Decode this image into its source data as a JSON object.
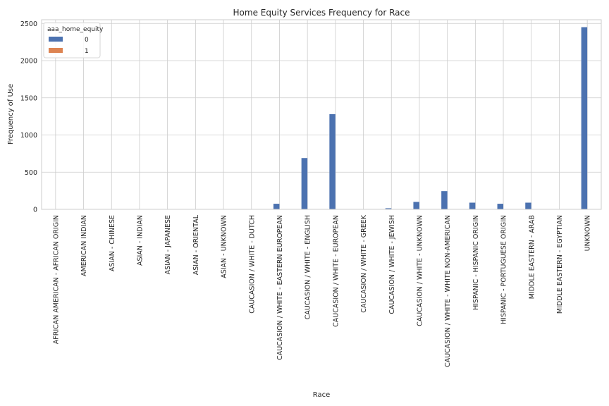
{
  "chart_data": {
    "type": "bar",
    "title": "Home Equity Services Frequency for Race",
    "xlabel": "Race",
    "ylabel": "Frequency of Use",
    "ylim": [
      0,
      2550
    ],
    "yticks": [
      0,
      500,
      1000,
      1500,
      2000,
      2500
    ],
    "grid": true,
    "legend": {
      "title": "aaa_home_equity",
      "placement": "top-left"
    },
    "categories": [
      "AFRICAN AMERICAN - AFRICAN ORIGIN",
      "AMERICAN INDIAN",
      "ASIAN - CHINESE",
      "ASIAN - INDIAN",
      "ASIAN - JAPANESE",
      "ASIAN - ORIENTAL",
      "ASIAN - UNKNOWN",
      "CAUCASION / WHITE - DUTCH",
      "CAUCASION / WHITE - EASTERN EUROPEAN",
      "CAUCASION / WHITE - ENGLISH",
      "CAUCASION / WHITE - EUROPEAN",
      "CAUCASION / WHITE - GREEK",
      "CAUCASION / WHITE - JEWISH",
      "CAUCASION / WHITE - UNKNOWN",
      "CAUCASION / WHITE - WHITE NON-AMERICAN",
      "HISPANIC - HISPANIC ORIGIN",
      "HISPANIC - PORTUGUESE ORIGIN",
      "MIDDLE EASTERN - ARAB",
      "MIDDLE EASTERN - EGYPTIAN",
      "UNKNOWN"
    ],
    "series": [
      {
        "name": "0",
        "color": "#4c72b0",
        "values": [
          3,
          2,
          2,
          1,
          2,
          2,
          3,
          3,
          75,
          690,
          1280,
          2,
          15,
          100,
          245,
          90,
          75,
          90,
          2,
          2450
        ]
      },
      {
        "name": "1",
        "color": "#dd8452",
        "values": [
          0,
          0,
          0,
          0,
          0,
          0,
          0,
          0,
          0,
          0,
          0,
          0,
          0,
          0,
          0,
          0,
          0,
          0,
          0,
          0
        ]
      }
    ]
  }
}
